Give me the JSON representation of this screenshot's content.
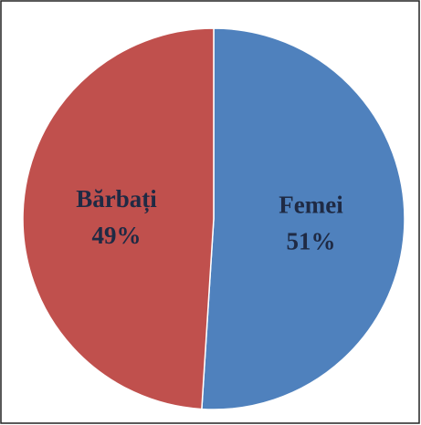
{
  "chart_data": {
    "type": "pie",
    "categories": [
      "Femei",
      "Bărbați"
    ],
    "values": [
      51,
      49
    ],
    "value_labels": [
      "51%",
      "49%"
    ],
    "colors": [
      "#4f81bd",
      "#c0504d"
    ]
  }
}
